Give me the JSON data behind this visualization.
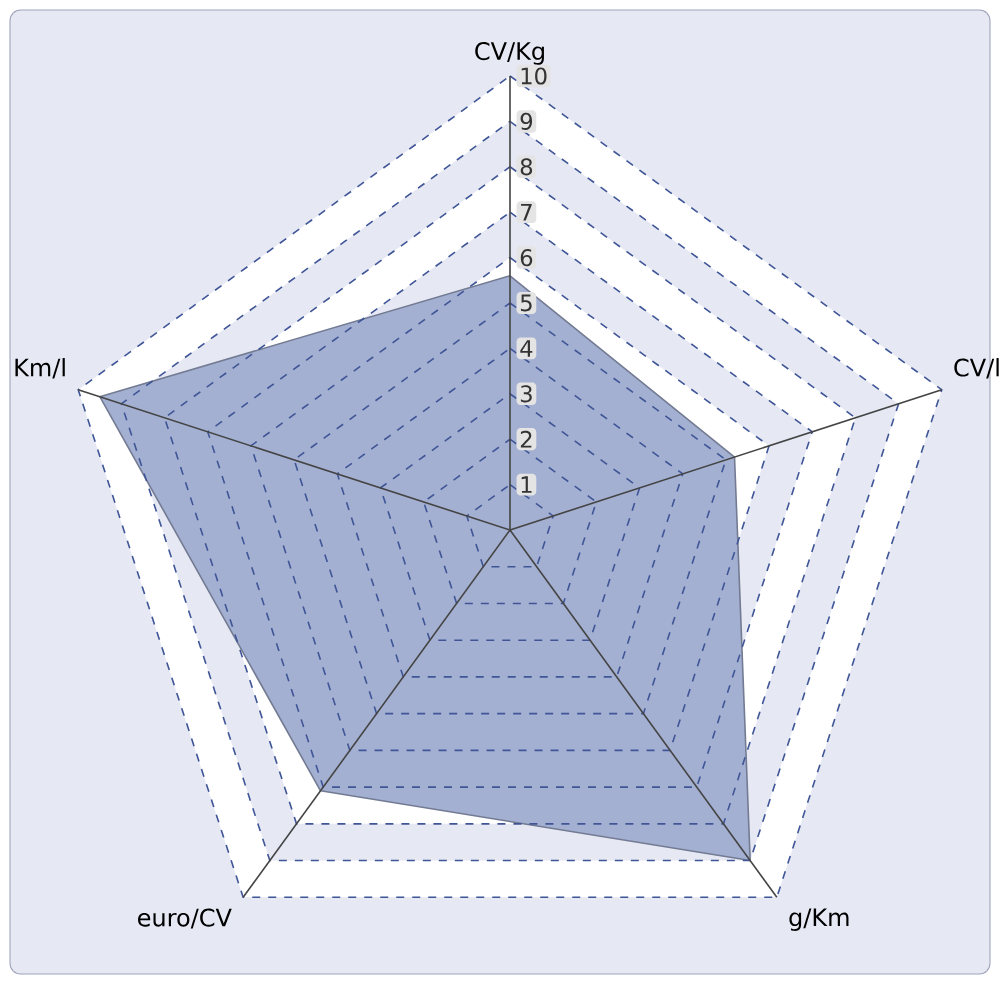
{
  "chart_data": {
    "type": "radar",
    "categories": [
      "CV/Kg",
      "CV/l",
      "g/Km",
      "euro/CV",
      "Km/l"
    ],
    "series": [
      {
        "color": "#a4b0d2",
        "values": [
          5.6,
          5.2,
          9,
          7.1,
          9.5
        ]
      }
    ],
    "ylim": [
      0,
      10
    ],
    "yticks": [
      1,
      2,
      3,
      4,
      5,
      6,
      7,
      8,
      9,
      10
    ],
    "grid": true
  }
}
